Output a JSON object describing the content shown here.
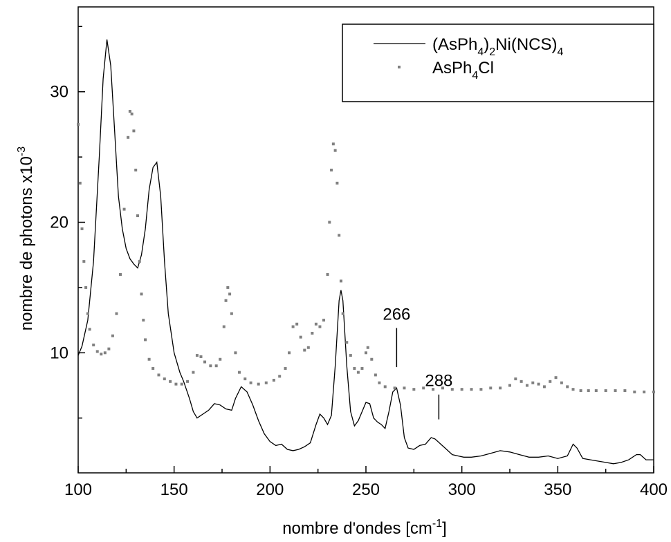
{
  "chart_data": {
    "type": "line",
    "x_label": {
      "text": "nombre d'ondes [cm",
      "superscript": "-1",
      "suffix": "]"
    },
    "y_label": {
      "text": "nombre de photons x10",
      "superscript": "-3"
    },
    "xlim": [
      100,
      400
    ],
    "xticks": [
      100,
      150,
      200,
      250,
      300,
      350,
      400
    ],
    "xminorticks": [
      125,
      175,
      225,
      275,
      325,
      375
    ],
    "ylim": [
      0.8,
      36.5
    ],
    "yticks": [
      10,
      20,
      30
    ],
    "yminorticks": [
      5,
      15,
      25,
      35
    ],
    "grid": false,
    "legend": "upper right",
    "series": [
      {
        "name": "(AsPh4)2Ni(NCS)4",
        "color": "#000000",
        "mode": "line",
        "x": [
          100,
          102,
          105,
          108,
          111,
          113,
          115,
          117,
          119,
          121,
          123,
          125,
          127,
          129,
          131,
          133,
          135,
          137,
          139,
          141,
          143,
          145,
          147,
          150,
          153,
          155,
          158,
          160,
          162,
          165,
          168,
          171,
          174,
          177,
          180,
          182,
          185,
          188,
          191,
          194,
          197,
          200,
          203,
          206,
          209,
          212,
          215,
          218,
          221,
          224,
          226,
          228,
          230,
          232,
          234,
          236,
          237,
          238,
          240,
          242,
          244,
          246,
          248,
          250,
          252,
          254,
          256,
          258,
          260,
          262,
          264,
          266,
          268,
          270,
          272,
          275,
          278,
          281,
          284,
          286,
          289,
          292,
          295,
          298,
          301,
          305,
          310,
          315,
          320,
          325,
          330,
          335,
          340,
          345,
          350,
          355,
          358,
          360,
          363,
          367,
          371,
          375,
          379,
          383,
          387,
          391,
          393,
          396,
          400
        ],
        "values": [
          9.8,
          10.5,
          12.5,
          17,
          25,
          31,
          34,
          32,
          27,
          22,
          19.5,
          18,
          17.2,
          16.8,
          16.5,
          17.5,
          19.5,
          22.5,
          24.2,
          24.6,
          22,
          17,
          13,
          10,
          8.5,
          7.8,
          6.5,
          5.5,
          5.0,
          5.3,
          5.6,
          6.1,
          6.0,
          5.7,
          5.6,
          6.5,
          7.4,
          7.0,
          6.0,
          4.8,
          3.8,
          3.2,
          2.9,
          3.0,
          2.6,
          2.5,
          2.6,
          2.8,
          3.1,
          4.5,
          5.3,
          5.0,
          4.5,
          5.2,
          9,
          14,
          14.8,
          14,
          9,
          5.5,
          4.4,
          4.8,
          5.5,
          6.2,
          6.1,
          5.0,
          4.7,
          4.5,
          4.2,
          5.5,
          7.0,
          7.3,
          6.0,
          3.5,
          2.7,
          2.6,
          2.9,
          3.0,
          3.5,
          3.4,
          3.0,
          2.6,
          2.2,
          2.1,
          2.0,
          2.0,
          2.1,
          2.3,
          2.5,
          2.4,
          2.2,
          2.0,
          2.0,
          2.1,
          1.9,
          2.1,
          3.0,
          2.7,
          1.9,
          1.8,
          1.7,
          1.6,
          1.5,
          1.6,
          1.8,
          2.2,
          2.2,
          1.8,
          1.8
        ]
      },
      {
        "name": "AsPh4Cl",
        "color": "#808080",
        "mode": "markers",
        "x": [
          100,
          101,
          102,
          103,
          104,
          105,
          106,
          108,
          110,
          112,
          114,
          116,
          118,
          120,
          122,
          124,
          126,
          127,
          128,
          129,
          130,
          131,
          132,
          133,
          134,
          135,
          137,
          139,
          142,
          145,
          148,
          151,
          154,
          157,
          160,
          162,
          164,
          166,
          169,
          172,
          174,
          176,
          177,
          178,
          179,
          180,
          182,
          184,
          187,
          190,
          194,
          198,
          202,
          205,
          208,
          210,
          212,
          214,
          216,
          218,
          220,
          222,
          224,
          226,
          228,
          230,
          231,
          232,
          233,
          234,
          235,
          236,
          237,
          238,
          240,
          242,
          244,
          246,
          248,
          250,
          251,
          253,
          255,
          257,
          260,
          265,
          270,
          275,
          280,
          285,
          290,
          295,
          300,
          305,
          310,
          315,
          320,
          325,
          328,
          331,
          334,
          337,
          340,
          343,
          346,
          349,
          352,
          355,
          358,
          362,
          366,
          370,
          375,
          380,
          385,
          390,
          395,
          400
        ],
        "values": [
          27.5,
          23,
          19.5,
          17,
          15,
          13,
          11.8,
          10.6,
          10.1,
          9.9,
          10.0,
          10.3,
          11.3,
          13,
          16,
          21,
          26.5,
          28.5,
          28.3,
          27,
          24,
          20.5,
          17,
          14.5,
          12.5,
          11,
          9.5,
          8.8,
          8.3,
          8.0,
          7.8,
          7.6,
          7.6,
          7.8,
          8.5,
          9.8,
          9.7,
          9.3,
          9.0,
          9.0,
          9.5,
          12,
          14,
          15,
          14.5,
          13,
          10,
          8.5,
          8.0,
          7.7,
          7.6,
          7.7,
          7.9,
          8.2,
          8.8,
          10,
          12,
          12.2,
          11.2,
          10.2,
          10.4,
          11.5,
          12.2,
          12,
          12.5,
          16,
          20,
          24,
          26,
          25.5,
          23,
          19,
          15.5,
          13,
          10.8,
          9.8,
          8.8,
          8.5,
          8.8,
          10,
          10.4,
          9.5,
          8.3,
          7.7,
          7.4,
          7.3,
          7.3,
          7.2,
          7.3,
          7.2,
          7.3,
          7.2,
          7.2,
          7.2,
          7.2,
          7.3,
          7.3,
          7.5,
          8.0,
          7.8,
          7.5,
          7.7,
          7.6,
          7.4,
          7.8,
          8.1,
          7.7,
          7.4,
          7.2,
          7.1,
          7.1,
          7.1,
          7.1,
          7.1,
          7.1,
          7.0,
          7.0,
          7.0
        ]
      }
    ],
    "annotations": [
      {
        "text": "266",
        "x": 266,
        "y0": 8.9,
        "y1": 11.9
      },
      {
        "text": "288",
        "x": 288,
        "y0": 4.9,
        "y1": 6.8
      }
    ]
  }
}
